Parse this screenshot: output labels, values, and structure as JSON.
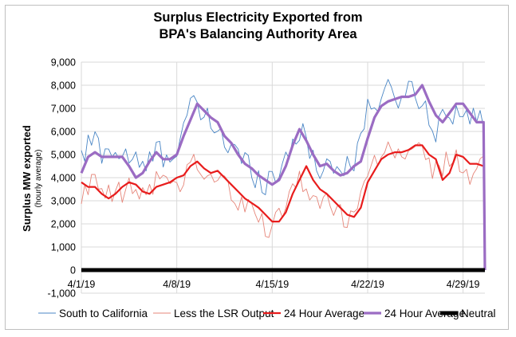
{
  "chart_data": {
    "type": "line",
    "title_line1": "Surplus Electricity Exported from",
    "title_line2": "BPA's Balancing Authority Area",
    "ylabel": "Surplus MW exported",
    "ylabel_sub": "(hourly average)",
    "ylim": [
      -1000,
      9000
    ],
    "yticks": [
      -1000,
      0,
      1000,
      2000,
      3000,
      4000,
      5000,
      6000,
      7000,
      8000,
      9000
    ],
    "ytick_labels": [
      "-1,000",
      "0",
      "1,000",
      "2,000",
      "3,000",
      "4,000",
      "5,000",
      "6,000",
      "7,000",
      "8,000",
      "9,000"
    ],
    "xlim": [
      0,
      29.6
    ],
    "xticks": [
      0,
      7,
      14,
      21,
      28
    ],
    "xtick_labels": [
      "4/1/19",
      "4/8/19",
      "4/15/19",
      "4/22/19",
      "4/29/19"
    ],
    "grid": true,
    "legend_position": "bottom",
    "series": [
      {
        "name": "South to California",
        "color": "#4a86c5",
        "style": "thin",
        "trend": [
          [
            0,
            4700
          ],
          [
            0.5,
            5400
          ],
          [
            1,
            5600
          ],
          [
            1.5,
            5200
          ],
          [
            2,
            5300
          ],
          [
            2.5,
            5100
          ],
          [
            3,
            4900
          ],
          [
            3.5,
            5000
          ],
          [
            4,
            4600
          ],
          [
            4.5,
            4300
          ],
          [
            5,
            4700
          ],
          [
            5.5,
            5200
          ],
          [
            6,
            4900
          ],
          [
            6.5,
            5300
          ],
          [
            7,
            5100
          ],
          [
            7.5,
            6200
          ],
          [
            8,
            6900
          ],
          [
            8.5,
            7000
          ],
          [
            9,
            6600
          ],
          [
            9.5,
            6300
          ],
          [
            10,
            6200
          ],
          [
            10.5,
            5600
          ],
          [
            11,
            5300
          ],
          [
            11.5,
            4900
          ],
          [
            12,
            4700
          ],
          [
            12.5,
            4300
          ],
          [
            13,
            4100
          ],
          [
            13.5,
            3900
          ],
          [
            14,
            4000
          ],
          [
            14.5,
            4300
          ],
          [
            15,
            4900
          ],
          [
            15.5,
            5800
          ],
          [
            16,
            6000
          ],
          [
            16.5,
            5400
          ],
          [
            17,
            4900
          ],
          [
            17.5,
            4500
          ],
          [
            18,
            4600
          ],
          [
            18.5,
            4400
          ],
          [
            19,
            4300
          ],
          [
            19.5,
            4700
          ],
          [
            20,
            4800
          ],
          [
            20.5,
            5800
          ],
          [
            21,
            6800
          ],
          [
            21.5,
            7300
          ],
          [
            22,
            7500
          ],
          [
            22.5,
            7600
          ],
          [
            23,
            7500
          ],
          [
            23.5,
            7700
          ],
          [
            24,
            7800
          ],
          [
            24.5,
            7700
          ],
          [
            25,
            7400
          ],
          [
            25.5,
            6500
          ],
          [
            26,
            6200
          ],
          [
            26.5,
            6700
          ],
          [
            27,
            6900
          ],
          [
            27.5,
            7000
          ],
          [
            28,
            6800
          ],
          [
            28.5,
            6300
          ],
          [
            29,
            6600
          ],
          [
            29.5,
            6400
          ]
        ],
        "amplitude": 1200,
        "min": 2700,
        "max": 9000
      },
      {
        "name": "Less the LSR Output",
        "color": "#e6867a",
        "style": "thin",
        "trend": [
          [
            0,
            3300
          ],
          [
            0.5,
            3500
          ],
          [
            1,
            3600
          ],
          [
            1.5,
            3300
          ],
          [
            2,
            3200
          ],
          [
            2.5,
            3300
          ],
          [
            3,
            3200
          ],
          [
            3.5,
            3600
          ],
          [
            4,
            3300
          ],
          [
            4.5,
            3100
          ],
          [
            5,
            3500
          ],
          [
            5.5,
            4100
          ],
          [
            6,
            3600
          ],
          [
            6.5,
            3800
          ],
          [
            7,
            3900
          ],
          [
            7.5,
            4000
          ],
          [
            8,
            4600
          ],
          [
            8.5,
            4600
          ],
          [
            9,
            4200
          ],
          [
            9.5,
            4100
          ],
          [
            10,
            3900
          ],
          [
            10.5,
            3700
          ],
          [
            11,
            3300
          ],
          [
            11.5,
            3000
          ],
          [
            12,
            2700
          ],
          [
            12.5,
            2500
          ],
          [
            13,
            2300
          ],
          [
            13.5,
            2000
          ],
          [
            14,
            1900
          ],
          [
            14.5,
            2100
          ],
          [
            15,
            2700
          ],
          [
            15.5,
            3500
          ],
          [
            16,
            4000
          ],
          [
            16.5,
            3800
          ],
          [
            17,
            3100
          ],
          [
            17.5,
            2900
          ],
          [
            18,
            3000
          ],
          [
            18.5,
            2600
          ],
          [
            19,
            2400
          ],
          [
            19.5,
            2300
          ],
          [
            20,
            2400
          ],
          [
            20.5,
            3500
          ],
          [
            21,
            4300
          ],
          [
            21.5,
            4900
          ],
          [
            22,
            5000
          ],
          [
            22.5,
            5100
          ],
          [
            23,
            5000
          ],
          [
            23.5,
            5200
          ],
          [
            24,
            5300
          ],
          [
            24.5,
            5200
          ],
          [
            25,
            5000
          ],
          [
            25.5,
            4500
          ],
          [
            26,
            4300
          ],
          [
            26.5,
            4600
          ],
          [
            27,
            4600
          ],
          [
            27.5,
            4700
          ],
          [
            28,
            4600
          ],
          [
            28.5,
            3900
          ],
          [
            29,
            4600
          ],
          [
            29.5,
            4400
          ]
        ],
        "amplitude": 1100,
        "min": 1000,
        "max": 6400
      },
      {
        "name": "24 Hour Average",
        "color": "#e81c1c",
        "style": "medium",
        "points": [
          [
            0,
            3800
          ],
          [
            0.5,
            3600
          ],
          [
            1,
            3600
          ],
          [
            1.5,
            3300
          ],
          [
            2,
            3100
          ],
          [
            2.5,
            3300
          ],
          [
            3,
            3600
          ],
          [
            3.5,
            3800
          ],
          [
            4,
            3700
          ],
          [
            4.5,
            3400
          ],
          [
            5,
            3300
          ],
          [
            5.5,
            3600
          ],
          [
            6,
            3700
          ],
          [
            6.5,
            3800
          ],
          [
            7,
            4000
          ],
          [
            7.5,
            4100
          ],
          [
            8,
            4500
          ],
          [
            8.5,
            4700
          ],
          [
            9,
            4400
          ],
          [
            9.5,
            4200
          ],
          [
            10,
            4300
          ],
          [
            10.5,
            4000
          ],
          [
            11,
            3700
          ],
          [
            11.5,
            3400
          ],
          [
            12,
            3100
          ],
          [
            12.5,
            2900
          ],
          [
            13,
            2700
          ],
          [
            13.5,
            2400
          ],
          [
            14,
            2100
          ],
          [
            14.5,
            2100
          ],
          [
            15,
            2500
          ],
          [
            15.5,
            3300
          ],
          [
            16,
            3900
          ],
          [
            16.5,
            4500
          ],
          [
            17,
            3900
          ],
          [
            17.5,
            3500
          ],
          [
            18,
            3300
          ],
          [
            18.5,
            3000
          ],
          [
            19,
            2700
          ],
          [
            19.5,
            2400
          ],
          [
            20,
            2300
          ],
          [
            20.5,
            2700
          ],
          [
            21,
            3800
          ],
          [
            21.5,
            4300
          ],
          [
            22,
            4800
          ],
          [
            22.5,
            5000
          ],
          [
            23,
            5100
          ],
          [
            23.5,
            5100
          ],
          [
            24,
            5200
          ],
          [
            24.5,
            5400
          ],
          [
            25,
            5400
          ],
          [
            25.5,
            5000
          ],
          [
            26,
            4800
          ],
          [
            26.5,
            3900
          ],
          [
            27,
            4200
          ],
          [
            27.5,
            5000
          ],
          [
            28,
            4900
          ],
          [
            28.5,
            4600
          ],
          [
            29,
            4600
          ],
          [
            29.5,
            4500
          ]
        ]
      },
      {
        "name": "24 Hour Average",
        "color": "#9b6cc3",
        "style": "thick",
        "points": [
          [
            0,
            4200
          ],
          [
            0.5,
            4900
          ],
          [
            1,
            5100
          ],
          [
            1.5,
            4900
          ],
          [
            2,
            4900
          ],
          [
            2.5,
            4900
          ],
          [
            3,
            4900
          ],
          [
            3.5,
            4500
          ],
          [
            4,
            4000
          ],
          [
            4.5,
            4200
          ],
          [
            5,
            4700
          ],
          [
            5.5,
            5100
          ],
          [
            6,
            4800
          ],
          [
            6.5,
            4800
          ],
          [
            7,
            5000
          ],
          [
            7.5,
            5800
          ],
          [
            8,
            6500
          ],
          [
            8.5,
            7200
          ],
          [
            9,
            6900
          ],
          [
            9.5,
            6600
          ],
          [
            10,
            6400
          ],
          [
            10.5,
            5800
          ],
          [
            11,
            5500
          ],
          [
            11.5,
            5000
          ],
          [
            12,
            4600
          ],
          [
            12.5,
            4400
          ],
          [
            13,
            4100
          ],
          [
            13.5,
            3900
          ],
          [
            14,
            3700
          ],
          [
            14.5,
            3900
          ],
          [
            15,
            4500
          ],
          [
            15.5,
            5400
          ],
          [
            16,
            6100
          ],
          [
            16.5,
            5600
          ],
          [
            17,
            5000
          ],
          [
            17.5,
            4500
          ],
          [
            18,
            4600
          ],
          [
            18.5,
            4300
          ],
          [
            19,
            4100
          ],
          [
            19.5,
            4200
          ],
          [
            20,
            4500
          ],
          [
            20.5,
            4700
          ],
          [
            21,
            5700
          ],
          [
            21.5,
            6600
          ],
          [
            22,
            7100
          ],
          [
            22.5,
            7300
          ],
          [
            23,
            7400
          ],
          [
            23.5,
            7500
          ],
          [
            24,
            7500
          ],
          [
            24.5,
            7600
          ],
          [
            25,
            8000
          ],
          [
            25.5,
            7300
          ],
          [
            26,
            6700
          ],
          [
            26.5,
            6400
          ],
          [
            27,
            6800
          ],
          [
            27.5,
            7200
          ],
          [
            28,
            7200
          ],
          [
            28.5,
            6800
          ],
          [
            29,
            6400
          ],
          [
            29.5,
            6400
          ]
        ]
      },
      {
        "name": "Neutral",
        "color": "#000000",
        "style": "neutral",
        "points": [
          [
            0,
            0
          ],
          [
            29.6,
            0
          ]
        ]
      }
    ]
  },
  "legend": [
    {
      "label": "South to California",
      "color": "#4a86c5",
      "style": "thin"
    },
    {
      "label": "Less the LSR Output",
      "color": "#e6867a",
      "style": "thin"
    },
    {
      "label": "24 Hour Average",
      "color": "#e81c1c",
      "style": "medium"
    },
    {
      "label": "24 Hour Average",
      "color": "#9b6cc3",
      "style": "thick"
    },
    {
      "label": "Neutral",
      "color": "#000000",
      "style": "neutral"
    }
  ]
}
